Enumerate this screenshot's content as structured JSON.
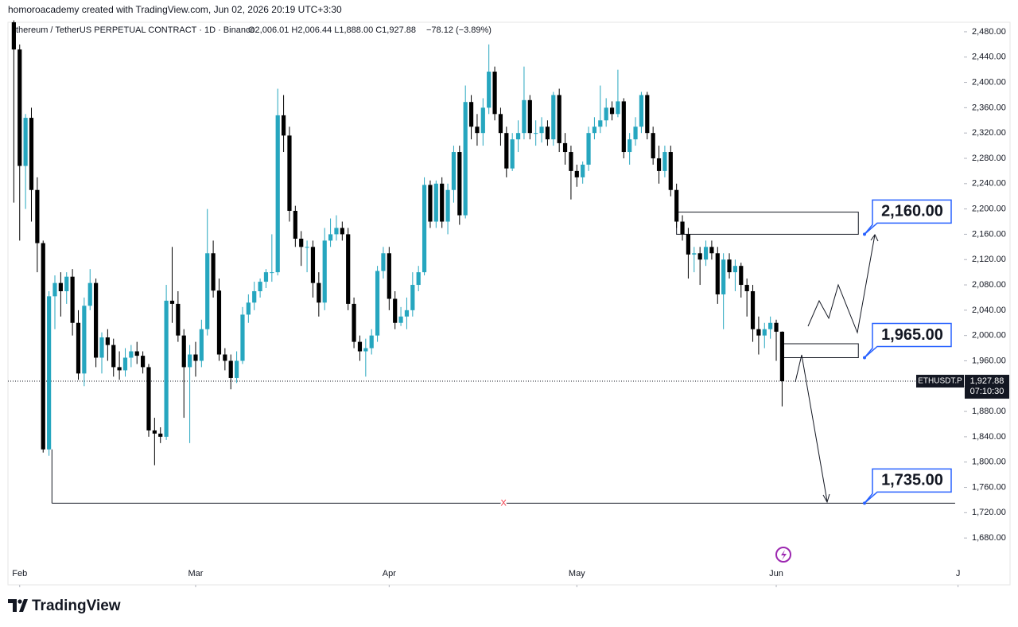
{
  "header": {
    "credit": "homoroacademy created with TradingView.com, Jun 02, 2026 20:19 UTC+3:30"
  },
  "chart_data": {
    "type": "candlestick",
    "legend": {
      "symbol": "thereum / TetherUS PERPETUAL CONTRACT · 1D · Binance",
      "ohlc": "O2,006.01 H2,006.44 L1,888.00 C1,927.88",
      "change": "−78.12 (−3.89%)"
    },
    "up_color": "#26a6bf",
    "down_color": "#000000",
    "candles": [
      [
        2495,
        2498,
        2210,
        2452
      ],
      [
        2452,
        2460,
        2150,
        2268
      ],
      [
        2268,
        2350,
        2200,
        2344
      ],
      [
        2344,
        2360,
        2180,
        2230
      ],
      [
        2230,
        2250,
        2100,
        2146
      ],
      [
        2146,
        2150,
        1815,
        1820
      ],
      [
        1820,
        2070,
        1810,
        2062
      ],
      [
        2062,
        2095,
        2010,
        2083
      ],
      [
        2083,
        2100,
        2030,
        2070
      ],
      [
        2070,
        2100,
        2050,
        2093
      ],
      [
        2093,
        2105,
        2000,
        2020
      ],
      [
        2020,
        2040,
        1930,
        1940
      ],
      [
        1940,
        2060,
        1920,
        2047
      ],
      [
        2047,
        2105,
        2040,
        2083
      ],
      [
        2083,
        2090,
        1950,
        1965
      ],
      [
        1965,
        2005,
        1940,
        1997
      ],
      [
        1997,
        2010,
        1960,
        1985
      ],
      [
        1985,
        1995,
        1935,
        1950
      ],
      [
        1950,
        1975,
        1930,
        1945
      ],
      [
        1945,
        1980,
        1935,
        1965
      ],
      [
        1965,
        1985,
        1950,
        1975
      ],
      [
        1975,
        1990,
        1955,
        1968
      ],
      [
        1968,
        1975,
        1940,
        1950
      ],
      [
        1950,
        1955,
        1840,
        1850
      ],
      [
        1850,
        1870,
        1795,
        1845
      ],
      [
        1845,
        1855,
        1830,
        1840
      ],
      [
        1840,
        2080,
        1835,
        2055
      ],
      [
        2055,
        2140,
        2020,
        2050
      ],
      [
        2050,
        2070,
        1990,
        2000
      ],
      [
        2000,
        2010,
        1870,
        1950
      ],
      [
        1950,
        1985,
        1830,
        1970
      ],
      [
        1970,
        1990,
        1935,
        1960
      ],
      [
        1960,
        2025,
        1950,
        2010
      ],
      [
        2010,
        2200,
        2000,
        2130
      ],
      [
        2130,
        2150,
        2060,
        2071
      ],
      [
        2071,
        2090,
        1960,
        1970
      ],
      [
        1970,
        1980,
        1945,
        1960
      ],
      [
        1960,
        1970,
        1915,
        1933
      ],
      [
        1933,
        1975,
        1925,
        1960
      ],
      [
        1960,
        2045,
        1955,
        2033
      ],
      [
        2033,
        2065,
        2020,
        2052
      ],
      [
        2052,
        2085,
        2040,
        2070
      ],
      [
        2070,
        2090,
        2060,
        2085
      ],
      [
        2085,
        2105,
        2075,
        2100
      ],
      [
        2100,
        2160,
        2085,
        2100
      ],
      [
        2100,
        2390,
        2095,
        2348
      ],
      [
        2348,
        2380,
        2290,
        2316
      ],
      [
        2316,
        2330,
        2180,
        2197
      ],
      [
        2197,
        2205,
        2140,
        2153
      ],
      [
        2153,
        2165,
        2110,
        2140
      ],
      [
        2140,
        2150,
        2100,
        2140
      ],
      [
        2140,
        2150,
        2060,
        2083
      ],
      [
        2083,
        2100,
        2030,
        2052
      ],
      [
        2052,
        2170,
        2040,
        2150
      ],
      [
        2150,
        2185,
        2140,
        2160
      ],
      [
        2160,
        2190,
        2150,
        2170
      ],
      [
        2170,
        2180,
        2150,
        2160
      ],
      [
        2160,
        2170,
        2040,
        2050
      ],
      [
        2050,
        2060,
        1980,
        1990
      ],
      [
        1990,
        2000,
        1960,
        1975
      ],
      [
        1975,
        1995,
        1935,
        1980
      ],
      [
        1980,
        2010,
        1970,
        2000
      ],
      [
        2000,
        2110,
        1990,
        2102
      ],
      [
        2102,
        2140,
        2090,
        2130
      ],
      [
        2130,
        2140,
        2040,
        2058
      ],
      [
        2058,
        2070,
        2010,
        2020
      ],
      [
        2020,
        2045,
        2015,
        2030
      ],
      [
        2030,
        2060,
        2010,
        2040
      ],
      [
        2040,
        2100,
        2030,
        2080
      ],
      [
        2080,
        2110,
        2070,
        2100
      ],
      [
        2100,
        2250,
        2095,
        2238
      ],
      [
        2238,
        2245,
        2170,
        2180
      ],
      [
        2180,
        2245,
        2170,
        2240
      ],
      [
        2240,
        2250,
        2170,
        2180
      ],
      [
        2180,
        2240,
        2160,
        2230
      ],
      [
        2230,
        2300,
        2210,
        2290
      ],
      [
        2290,
        2300,
        2175,
        2190
      ],
      [
        2190,
        2395,
        2185,
        2369
      ],
      [
        2369,
        2380,
        2310,
        2330
      ],
      [
        2330,
        2350,
        2300,
        2320
      ],
      [
        2320,
        2375,
        2300,
        2360
      ],
      [
        2360,
        2460,
        2350,
        2417
      ],
      [
        2417,
        2425,
        2340,
        2350
      ],
      [
        2350,
        2360,
        2300,
        2320
      ],
      [
        2320,
        2330,
        2250,
        2264
      ],
      [
        2264,
        2320,
        2260,
        2310
      ],
      [
        2310,
        2340,
        2290,
        2320
      ],
      [
        2320,
        2425,
        2310,
        2372
      ],
      [
        2372,
        2380,
        2310,
        2320
      ],
      [
        2320,
        2340,
        2300,
        2320
      ],
      [
        2320,
        2345,
        2305,
        2330
      ],
      [
        2330,
        2340,
        2300,
        2310
      ],
      [
        2310,
        2385,
        2300,
        2380
      ],
      [
        2380,
        2390,
        2290,
        2304
      ],
      [
        2304,
        2320,
        2270,
        2290
      ],
      [
        2290,
        2300,
        2215,
        2260
      ],
      [
        2260,
        2270,
        2235,
        2250
      ],
      [
        2250,
        2275,
        2240,
        2270
      ],
      [
        2270,
        2330,
        2260,
        2320
      ],
      [
        2320,
        2345,
        2310,
        2330
      ],
      [
        2330,
        2395,
        2320,
        2340
      ],
      [
        2340,
        2375,
        2330,
        2360
      ],
      [
        2360,
        2370,
        2340,
        2350
      ],
      [
        2350,
        2420,
        2345,
        2370
      ],
      [
        2370,
        2375,
        2280,
        2290
      ],
      [
        2290,
        2320,
        2270,
        2310
      ],
      [
        2310,
        2345,
        2300,
        2330
      ],
      [
        2330,
        2385,
        2320,
        2380
      ],
      [
        2380,
        2385,
        2310,
        2320
      ],
      [
        2320,
        2330,
        2270,
        2280
      ],
      [
        2280,
        2300,
        2240,
        2260
      ],
      [
        2260,
        2300,
        2250,
        2290
      ],
      [
        2290,
        2300,
        2220,
        2230
      ],
      [
        2230,
        2240,
        2170,
        2180
      ],
      [
        2180,
        2190,
        2150,
        2160
      ],
      [
        2160,
        2170,
        2090,
        2128
      ],
      [
        2128,
        2140,
        2100,
        2130
      ],
      [
        2130,
        2140,
        2080,
        2120
      ],
      [
        2120,
        2150,
        2110,
        2140
      ],
      [
        2140,
        2150,
        2120,
        2130
      ],
      [
        2130,
        2140,
        2050,
        2065
      ],
      [
        2065,
        2130,
        2010,
        2120
      ],
      [
        2120,
        2130,
        2090,
        2100
      ],
      [
        2100,
        2120,
        2070,
        2110
      ],
      [
        2110,
        2115,
        2060,
        2080
      ],
      [
        2080,
        2090,
        2030,
        2070
      ],
      [
        2070,
        2080,
        1990,
        2010
      ],
      [
        2010,
        2030,
        1970,
        2000
      ],
      [
        2000,
        2020,
        1980,
        2010
      ],
      [
        2010,
        2030,
        1995,
        2020
      ],
      [
        2020,
        2025,
        1960,
        2006
      ],
      [
        2006.01,
        2006.44,
        1888,
        1927.88
      ]
    ],
    "xlim": [
      -1,
      162
    ],
    "xticks": [
      {
        "value": 1,
        "label": "Feb"
      },
      {
        "value": 31,
        "label": "Mar"
      },
      {
        "value": 64,
        "label": "Apr"
      },
      {
        "value": 96,
        "label": "May"
      },
      {
        "value": 130,
        "label": "Jun"
      },
      {
        "value": 161,
        "label": "J"
      }
    ],
    "ylim": [
      1606,
      2495
    ],
    "yticks": [
      {
        "value": 1680,
        "label": "1,680.00"
      },
      {
        "value": 1720,
        "label": "1,720.00"
      },
      {
        "value": 1760,
        "label": "1,760.00"
      },
      {
        "value": 1800,
        "label": "1,800.00"
      },
      {
        "value": 1840,
        "label": "1,840.00"
      },
      {
        "value": 1880,
        "label": "1,880.00"
      },
      {
        "value": 1920,
        "label": "1,920.00"
      },
      {
        "value": 1960,
        "label": "1,960.00"
      },
      {
        "value": 2000,
        "label": "2,000.00"
      },
      {
        "value": 2040,
        "label": "2,040.00"
      },
      {
        "value": 2080,
        "label": "2,080.00"
      },
      {
        "value": 2120,
        "label": "2,120.00"
      },
      {
        "value": 2160,
        "label": "2,160.00"
      },
      {
        "value": 2200,
        "label": "2,200.00"
      },
      {
        "value": 2240,
        "label": "2,240.00"
      },
      {
        "value": 2280,
        "label": "2,280.00"
      },
      {
        "value": 2320,
        "label": "2,320.00"
      },
      {
        "value": 2360,
        "label": "2,360.00"
      },
      {
        "value": 2400,
        "label": "2,400.00"
      },
      {
        "value": 2440,
        "label": "2,440.00"
      },
      {
        "value": 2480,
        "label": "2,480.00"
      }
    ],
    "price_tag": {
      "symbol": "ETHUSDT.P",
      "value": 1927.88,
      "label": "1,927.88",
      "countdown": "07:10:30"
    },
    "zones": [
      {
        "from": 2160,
        "to": 2195,
        "start": 113,
        "end": 144
      },
      {
        "from": 1965,
        "to": 1987,
        "start": 131,
        "end": 144
      }
    ],
    "level": {
      "value": 1735,
      "start": 6.5,
      "end": 160.5,
      "label": "X"
    },
    "annotations": [
      {
        "value": 2160,
        "label": "2,160.00"
      },
      {
        "value": 1965,
        "label": "1,965.00"
      },
      {
        "value": 1735,
        "label": "1,735.00"
      }
    ]
  },
  "footer": {
    "brand": "TradingView"
  }
}
